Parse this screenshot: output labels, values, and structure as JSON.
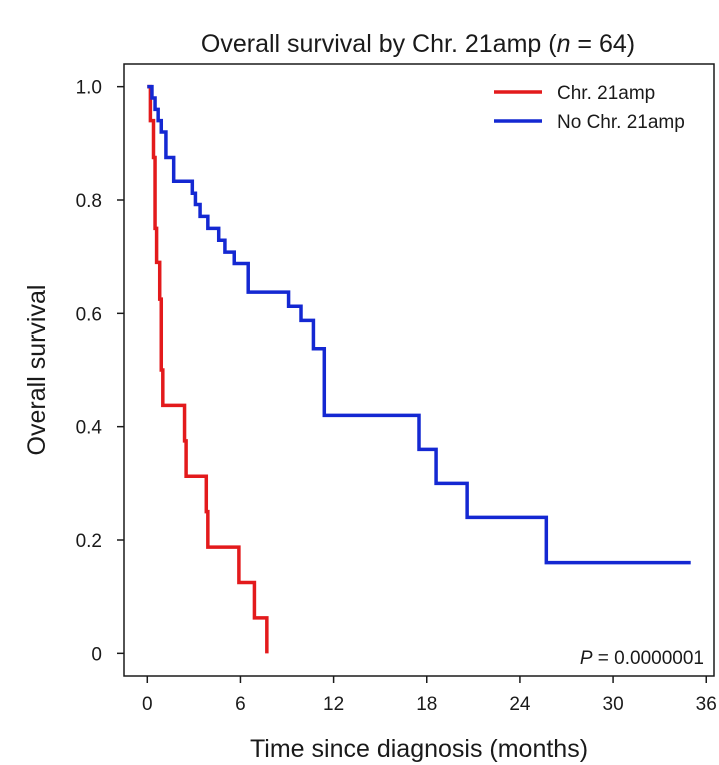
{
  "chart_data": {
    "type": "line",
    "step": true,
    "title": "Overall survival by Chr. 21amp (n = 64)",
    "title_parts": {
      "pre": "Overall survival by Chr. 21amp (",
      "n_symbol": "n",
      "post": " = 64)"
    },
    "xlabel": "Time since diagnosis (months)",
    "ylabel": "Overall survival",
    "xlim": [
      -1.5,
      36.5
    ],
    "ylim": [
      -0.04,
      1.04
    ],
    "xticks": [
      0,
      6,
      12,
      18,
      24,
      30,
      36
    ],
    "xtick_labels": [
      "0",
      "6",
      "12",
      "18",
      "24",
      "30",
      "36"
    ],
    "yticks": [
      0,
      0.2,
      0.4,
      0.6,
      0.8,
      1.0
    ],
    "ytick_labels": [
      "0",
      "0.2",
      "0.4",
      "0.6",
      "0.8",
      "1.0"
    ],
    "legend_position": "top-right",
    "grid": false,
    "series": [
      {
        "name": "Chr. 21amp",
        "color": "#e31a1c",
        "x": [
          0,
          0.2,
          0.4,
          0.5,
          0.6,
          0.8,
          0.9,
          1.0,
          2.4,
          2.5,
          3.8,
          3.9,
          5.9,
          6.9,
          7.6,
          7.7
        ],
        "y": [
          1.0,
          0.94,
          0.875,
          0.75,
          0.69,
          0.625,
          0.5,
          0.4375,
          0.375,
          0.3125,
          0.25,
          0.1875,
          0.125,
          0.0625,
          0.0625,
          0.0
        ]
      },
      {
        "name": "No Chr. 21amp",
        "color": "#1428d2",
        "x": [
          0,
          0.3,
          0.5,
          0.7,
          0.9,
          1.2,
          1.7,
          2.9,
          3.1,
          3.4,
          3.9,
          4.6,
          5.0,
          5.6,
          6.5,
          9.1,
          9.9,
          10.7,
          11.4,
          17.5,
          18.6,
          20.6,
          25.7,
          35.0
        ],
        "y": [
          1.0,
          0.98,
          0.96,
          0.94,
          0.92,
          0.875,
          0.833,
          0.812,
          0.792,
          0.771,
          0.75,
          0.729,
          0.708,
          0.688,
          0.6375,
          0.6125,
          0.5875,
          0.5375,
          0.42,
          0.36,
          0.3,
          0.24,
          0.16,
          0.16
        ]
      }
    ],
    "annotation": {
      "symbol": "P",
      "text": " = 0.0000001",
      "position": "bottom-right"
    }
  }
}
